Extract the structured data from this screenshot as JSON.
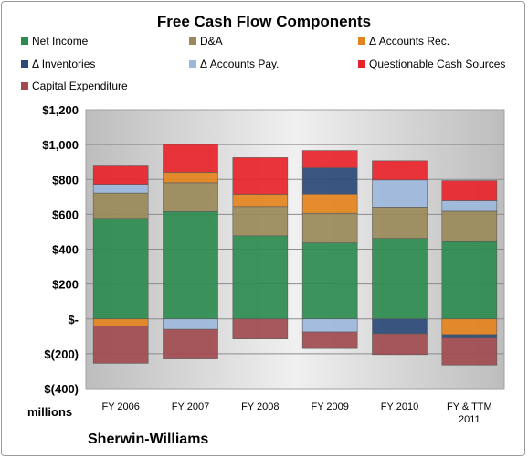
{
  "chart_data": {
    "type": "bar",
    "stacked": true,
    "title": "Free Cash Flow Components",
    "categories": [
      "FY 2006",
      "FY 2007",
      "FY 2008",
      "FY 2009",
      "FY 2010",
      "FY & TTM 2011"
    ],
    "unit_label": "millions",
    "ylim": [
      -400,
      1200
    ],
    "ytick_values": [
      -400,
      -200,
      0,
      200,
      400,
      600,
      800,
      1000,
      1200
    ],
    "ytick_labels": [
      "$(400)",
      "$(200)",
      "$-",
      "$200",
      "$400",
      "$600",
      "$800",
      "$1,000",
      "$1,200"
    ],
    "grid": true,
    "legend_position": "top",
    "series": [
      {
        "name": "Net Income",
        "color": "#2e8b4f",
        "values": [
          577,
          616,
          477,
          436,
          462,
          443
        ]
      },
      {
        "name": "D&A",
        "color": "#9a8a5a",
        "values": [
          145,
          165,
          168,
          170,
          180,
          175
        ]
      },
      {
        "name": "Δ Accounts Rec.",
        "color": "#e3831d",
        "values": [
          -40,
          60,
          70,
          110,
          0,
          -90
        ]
      },
      {
        "name": "Δ Inventories",
        "color": "#2b4a77",
        "values": [
          0,
          0,
          0,
          150,
          -85,
          -20
        ]
      },
      {
        "name": "Δ Accounts Pay.",
        "color": "#9db8dc",
        "values": [
          50,
          -60,
          0,
          -75,
          155,
          60
        ]
      },
      {
        "name": "Questionable Cash Sources",
        "color": "#e8242b",
        "values": [
          105,
          160,
          210,
          100,
          110,
          115
        ]
      },
      {
        "name": "Capital Expenditure",
        "color": "#a14b4f",
        "values": [
          -215,
          -170,
          -115,
          -95,
          -120,
          -155
        ]
      }
    ]
  },
  "footer": {
    "company": "Sherwin-Williams"
  }
}
